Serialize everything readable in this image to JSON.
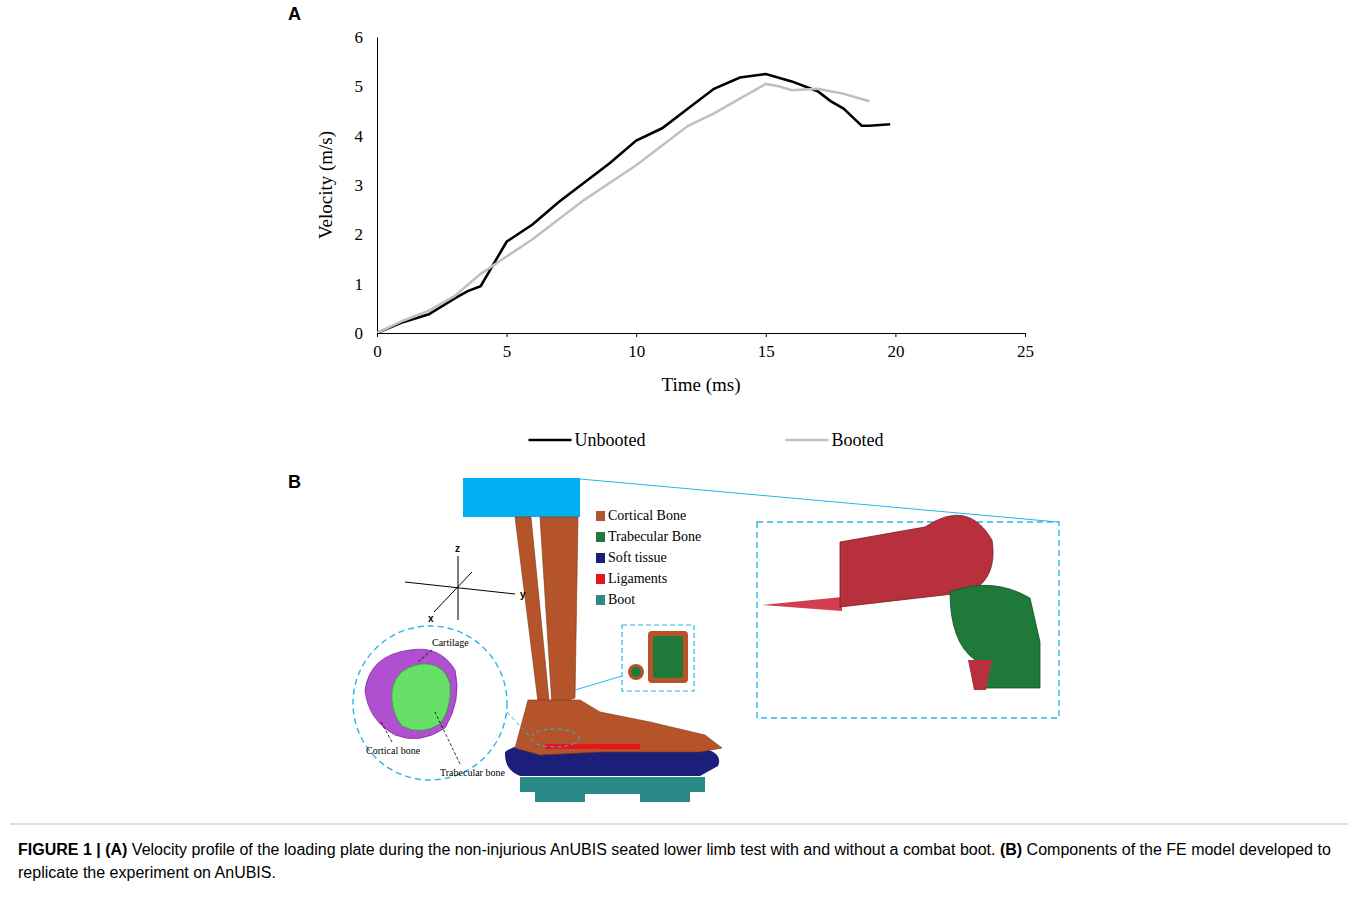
{
  "chart_data": {
    "type": "line",
    "x_label": "Time (ms)",
    "y_label": "Velocity (m/s)",
    "xlim": [
      0,
      25
    ],
    "xticks": [
      0,
      5,
      10,
      15,
      20,
      25
    ],
    "ylim": [
      0,
      6
    ],
    "yticks": [
      0,
      1,
      2,
      3,
      4,
      5,
      6
    ],
    "grid": false,
    "legend": "bottom",
    "series": [
      {
        "name": "Unbooted",
        "color": "#000000",
        "line_style": "solid",
        "x": [
          0,
          1,
          2,
          3,
          3.5,
          4,
          4.5,
          5,
          6,
          7,
          8,
          9,
          10,
          11,
          12,
          13,
          14,
          15,
          16,
          17,
          17.5,
          18,
          18.5,
          18.7,
          19,
          19.8
        ],
        "values": [
          0,
          0.22,
          0.38,
          0.7,
          0.85,
          0.95,
          1.4,
          1.85,
          2.2,
          2.65,
          3.05,
          3.45,
          3.9,
          4.15,
          4.55,
          4.95,
          5.18,
          5.25,
          5.1,
          4.9,
          4.7,
          4.55,
          4.3,
          4.2,
          4.2,
          4.23
        ]
      },
      {
        "name": "Booted",
        "color": "#c0c0c0",
        "line_style": "solid",
        "x": [
          0,
          1,
          2,
          3,
          4,
          5,
          6,
          7,
          8,
          9,
          10,
          11,
          12,
          13,
          14,
          15,
          15.5,
          16,
          17,
          18,
          19
        ],
        "values": [
          0,
          0.25,
          0.45,
          0.75,
          1.2,
          1.55,
          1.9,
          2.3,
          2.7,
          3.05,
          3.4,
          3.8,
          4.2,
          4.45,
          4.75,
          5.05,
          5.0,
          4.92,
          4.95,
          4.85,
          4.7
        ]
      }
    ]
  },
  "panel_letters": [
    "A",
    "B"
  ],
  "diagram": {
    "legend": [
      {
        "label": "Cortical Bone",
        "color": "#b5542a"
      },
      {
        "label": "Trabecular Bone",
        "color": "#1f7a3a"
      },
      {
        "label": "Soft tissue",
        "color": "#1b1f7a"
      },
      {
        "label": "Ligaments",
        "color": "#e8141c"
      },
      {
        "label": "Boot",
        "color": "#2a8a8a"
      }
    ],
    "axis_labels": [
      "z",
      "y",
      "x"
    ],
    "callouts": [
      "Cartilage",
      "Cortical bone",
      "Trabecular bone"
    ]
  },
  "caption": {
    "label": "FIGURE 1 |",
    "parts": [
      {
        "letter": "(A)",
        "text": "Velocity profile of the loading plate during the non-injurious AnUBIS seated lower limb test with and without a combat boot."
      },
      {
        "letter": "(B)",
        "text": "Components of the FE model developed to replicate the experiment on AnUBIS."
      }
    ]
  }
}
